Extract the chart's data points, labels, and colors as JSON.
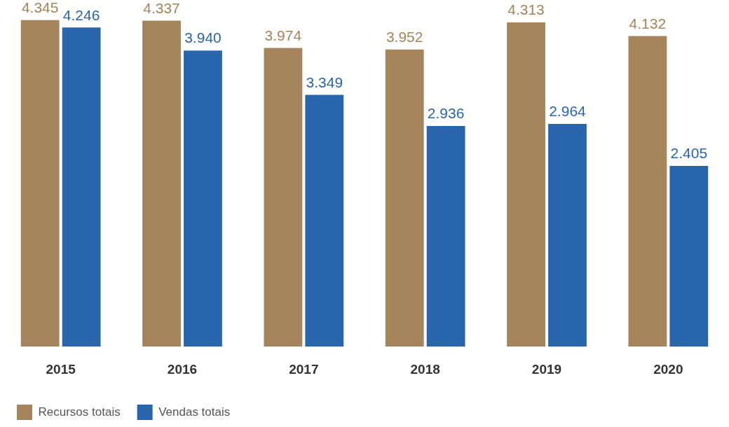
{
  "chart_data": {
    "type": "bar",
    "categories": [
      "2015",
      "2016",
      "2017",
      "2018",
      "2019",
      "2020"
    ],
    "series": [
      {
        "name": "Recursos totais",
        "color": "#a5845b",
        "values": [
          4.345,
          4.337,
          3.974,
          3.952,
          4.313,
          4.132
        ],
        "value_labels": [
          "4.345",
          "4.337",
          "3.974",
          "3.952",
          "4.313",
          "4.132"
        ]
      },
      {
        "name": "Vendas totais",
        "color": "#2965ad",
        "values": [
          4.246,
          3.94,
          3.349,
          2.936,
          2.964,
          2.405
        ],
        "value_labels": [
          "4.246",
          "3.940",
          "3.349",
          "2.936",
          "2.964",
          "2.405"
        ]
      }
    ],
    "legend": "bottom left",
    "grid": false,
    "tick_labels": "x"
  }
}
